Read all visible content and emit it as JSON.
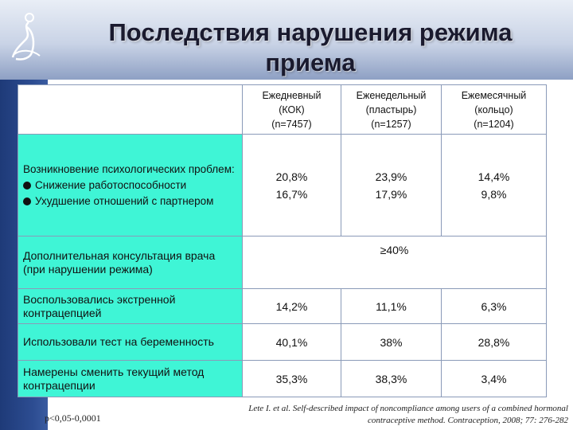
{
  "title": "Последствия нарушения режима приема",
  "header": [
    {
      "line1": "Ежедневный",
      "line2": "(КОК)",
      "line3": "(n=7457)"
    },
    {
      "line1": "Еженедельный",
      "line2": "(пластырь)",
      "line3": "(n=1257)"
    },
    {
      "line1": "Ежемесячный",
      "line2": "(кольцо)",
      "line3": "(n=1204)"
    }
  ],
  "rows": {
    "psych": {
      "label_title": "Возникновение психологических проблем:",
      "bullet1": "Снижение работоспособности",
      "bullet2": "Ухудшение отношений с партнером",
      "col1": {
        "v1": "20,8%",
        "v2": "16,7%"
      },
      "col2": {
        "v1": "23,9%",
        "v2": "17,9%"
      },
      "col3": {
        "v1": "14,4%",
        "v2": "9,8%"
      }
    },
    "consult": {
      "label": "Дополнительная консультация врача (при нарушении режима)",
      "value": "≥40%"
    },
    "emergency": {
      "label": "Воспользовались экстренной контрацепцией",
      "values": [
        "14,2%",
        "11,1%",
        "6,3%"
      ]
    },
    "pregtest": {
      "label": "Использовали тест на беременность",
      "values": [
        "40,1%",
        "38%",
        "28,8%"
      ]
    },
    "switch": {
      "label": "Намерены сменить текущий метод контрацепции",
      "values": [
        "35,3%",
        "38,3%",
        "3,4%"
      ]
    }
  },
  "footnote_left": "p<0,05-0,0001",
  "footnote_right_1": "Lete I. et al. Self-described impact of noncompliance among users of a combined hormonal",
  "footnote_right_2": "contraceptive method. Contraception, 2008; 77: 276-282",
  "colors": {
    "accent_cell": "#3ff5d6",
    "band_dark": "#1e3a78"
  }
}
